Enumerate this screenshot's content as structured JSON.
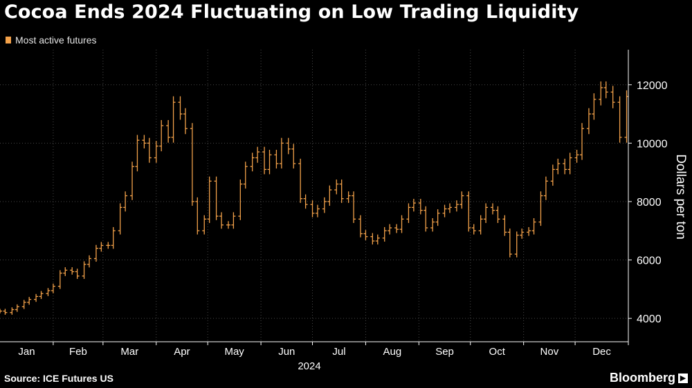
{
  "header": {
    "title": "Cocoa Ends 2024 Fluctuating on Low Trading Liquidity"
  },
  "legend": {
    "label": "Most active futures"
  },
  "footer": {
    "source": "Source: ICE Futures US",
    "brand": "Bloomberg",
    "brand_mark_icon": "bloomberg-logo-icon"
  },
  "colors": {
    "background": "#000000",
    "series": "#f4a24a",
    "grid": "#4a4a4a",
    "text": "#ffffff"
  },
  "chart_data": {
    "type": "line",
    "subtype": "ohlc-bars",
    "title": "Cocoa Ends 2024 Fluctuating on Low Trading Liquidity",
    "ylabel": "Dollars per ton",
    "xlabel": "2024",
    "ylim": [
      3200,
      13200
    ],
    "y_ticks": [
      4000,
      6000,
      8000,
      10000,
      12000
    ],
    "y_tick_labels": [
      "4000",
      "6000",
      "8000",
      "10000",
      "12000"
    ],
    "y_axis_position": "right",
    "grid": true,
    "legend_position": "top-left",
    "x_ticks": [
      "Jan",
      "Feb",
      "Mar",
      "Apr",
      "May",
      "Jun",
      "Jul",
      "Aug",
      "Sep",
      "Oct",
      "Nov",
      "Dec"
    ],
    "x_year_label": "2024",
    "series": [
      {
        "name": "Most active futures",
        "x": [
          "2024-01-01",
          "2024-01-04",
          "2024-01-08",
          "2024-01-11",
          "2024-01-15",
          "2024-01-18",
          "2024-01-22",
          "2024-01-25",
          "2024-01-29",
          "2024-02-01",
          "2024-02-05",
          "2024-02-08",
          "2024-02-12",
          "2024-02-15",
          "2024-02-19",
          "2024-02-22",
          "2024-02-26",
          "2024-02-29",
          "2024-03-04",
          "2024-03-07",
          "2024-03-11",
          "2024-03-14",
          "2024-03-18",
          "2024-03-21",
          "2024-03-25",
          "2024-03-28",
          "2024-04-01",
          "2024-04-04",
          "2024-04-08",
          "2024-04-11",
          "2024-04-15",
          "2024-04-18",
          "2024-04-22",
          "2024-04-25",
          "2024-04-29",
          "2024-05-02",
          "2024-05-06",
          "2024-05-09",
          "2024-05-13",
          "2024-05-16",
          "2024-05-20",
          "2024-05-23",
          "2024-05-27",
          "2024-05-30",
          "2024-06-03",
          "2024-06-06",
          "2024-06-10",
          "2024-06-13",
          "2024-06-17",
          "2024-06-20",
          "2024-06-24",
          "2024-06-27",
          "2024-07-01",
          "2024-07-04",
          "2024-07-08",
          "2024-07-11",
          "2024-07-15",
          "2024-07-18",
          "2024-07-22",
          "2024-07-25",
          "2024-07-29",
          "2024-08-01",
          "2024-08-05",
          "2024-08-08",
          "2024-08-12",
          "2024-08-15",
          "2024-08-19",
          "2024-08-22",
          "2024-08-26",
          "2024-08-29",
          "2024-09-02",
          "2024-09-05",
          "2024-09-09",
          "2024-09-12",
          "2024-09-16",
          "2024-09-19",
          "2024-09-23",
          "2024-09-26",
          "2024-09-30",
          "2024-10-03",
          "2024-10-07",
          "2024-10-10",
          "2024-10-14",
          "2024-10-17",
          "2024-10-21",
          "2024-10-24",
          "2024-10-28",
          "2024-10-31",
          "2024-11-04",
          "2024-11-07",
          "2024-11-11",
          "2024-11-14",
          "2024-11-18",
          "2024-11-21",
          "2024-11-25",
          "2024-11-28",
          "2024-12-02",
          "2024-12-05",
          "2024-12-09",
          "2024-12-12",
          "2024-12-16",
          "2024-12-19",
          "2024-12-23",
          "2024-12-27",
          "2024-12-31"
        ],
        "values": [
          4250,
          4200,
          4300,
          4400,
          4550,
          4650,
          4750,
          4850,
          4950,
          5100,
          5550,
          5650,
          5600,
          5450,
          5850,
          6050,
          6400,
          6500,
          6500,
          7000,
          7800,
          8200,
          9200,
          10100,
          10000,
          9500,
          9900,
          10600,
          10200,
          11400,
          11000,
          10500,
          8000,
          7000,
          7400,
          8700,
          7500,
          7200,
          7200,
          7500,
          8600,
          9200,
          9500,
          9700,
          9100,
          9600,
          9300,
          10000,
          9800,
          9300,
          8100,
          7900,
          7600,
          7750,
          8000,
          8400,
          8600,
          8100,
          8200,
          7400,
          6900,
          6800,
          6650,
          6750,
          7000,
          7100,
          7050,
          7400,
          7800,
          7950,
          7700,
          7100,
          7300,
          7600,
          7750,
          7800,
          7900,
          8200,
          7100,
          7000,
          7400,
          7800,
          7700,
          7400,
          6950,
          6200,
          6850,
          6950,
          7000,
          7300,
          8200,
          8700,
          9100,
          9300,
          9100,
          9500,
          9600,
          10500,
          11000,
          11500,
          11900,
          11750,
          11400,
          10200,
          11600
        ]
      }
    ]
  }
}
